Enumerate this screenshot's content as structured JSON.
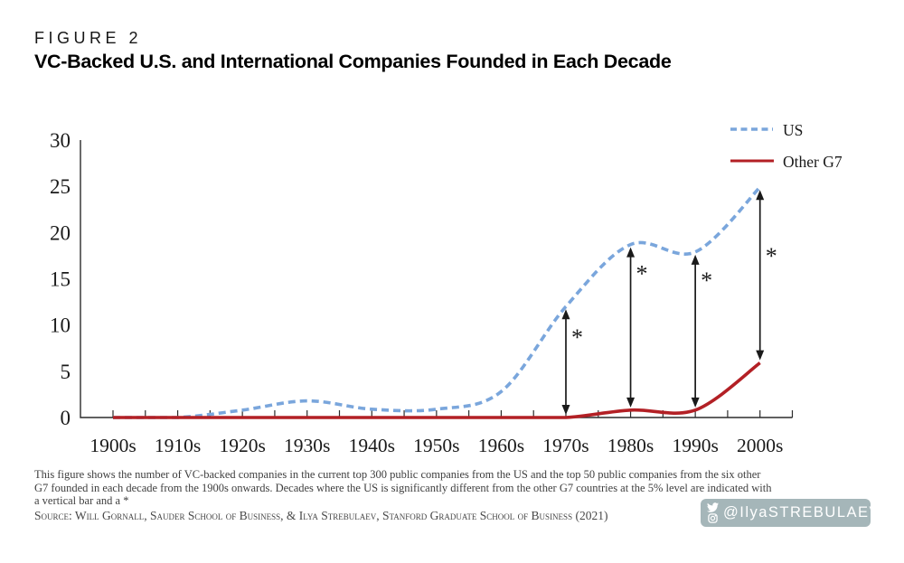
{
  "figure_label": "FIGURE 2",
  "title": "VC-Backed U.S. and International Companies Founded in Each Decade",
  "chart_data": {
    "type": "line",
    "categories": [
      "1900s",
      "1910s",
      "1920s",
      "1930s",
      "1940s",
      "1950s",
      "1960s",
      "1970s",
      "1980s",
      "1990s",
      "2000s"
    ],
    "series": [
      {
        "name": "US",
        "style": "dashed",
        "color": "#7AA6DC",
        "values": [
          0,
          0,
          0.8,
          1.8,
          0.9,
          0.9,
          2.8,
          12,
          18.7,
          17.9,
          24.9
        ]
      },
      {
        "name": "Other G7",
        "style": "solid",
        "color": "#B32025",
        "values": [
          0,
          0,
          0,
          0,
          0,
          0,
          0,
          0,
          0.8,
          0.8,
          5.9
        ]
      }
    ],
    "ylim": [
      0,
      30
    ],
    "yticks": [
      0,
      5,
      10,
      15,
      20,
      25,
      30
    ],
    "grid": false,
    "legend_position": "top-right",
    "significance": {
      "marker": "*",
      "decades": [
        "1970s",
        "1980s",
        "1990s",
        "2000s"
      ],
      "star_offsets": [
        40,
        38,
        37,
        82
      ]
    }
  },
  "legend": {
    "us_label": "US",
    "g7_label": "Other G7"
  },
  "footnote_lines": [
    "This figure shows the number of VC-backed companies in the current top 300 public companies from the US and the top 50 public companies from the six other",
    "G7 founded in each decade from the 1900s onwards. Decades where the US is significantly different from the other G7 countries at the 5% level are indicated with",
    "a vertical bar and a *"
  ],
  "source": "Source: Will Gornall, Sauder School of Business, & Ilya Strebulaev, Stanford Graduate School of Business (2021)",
  "badge": {
    "handle": "@IlyaSTREBULAEV",
    "bg_color": "#A5B6B9",
    "icons": [
      "twitter-icon",
      "instagram-icon"
    ]
  },
  "colors": {
    "us_line": "#7AA6DC",
    "g7_line": "#B32025",
    "axis": "#2b2b2b",
    "arrow": "#1a1a1a"
  }
}
